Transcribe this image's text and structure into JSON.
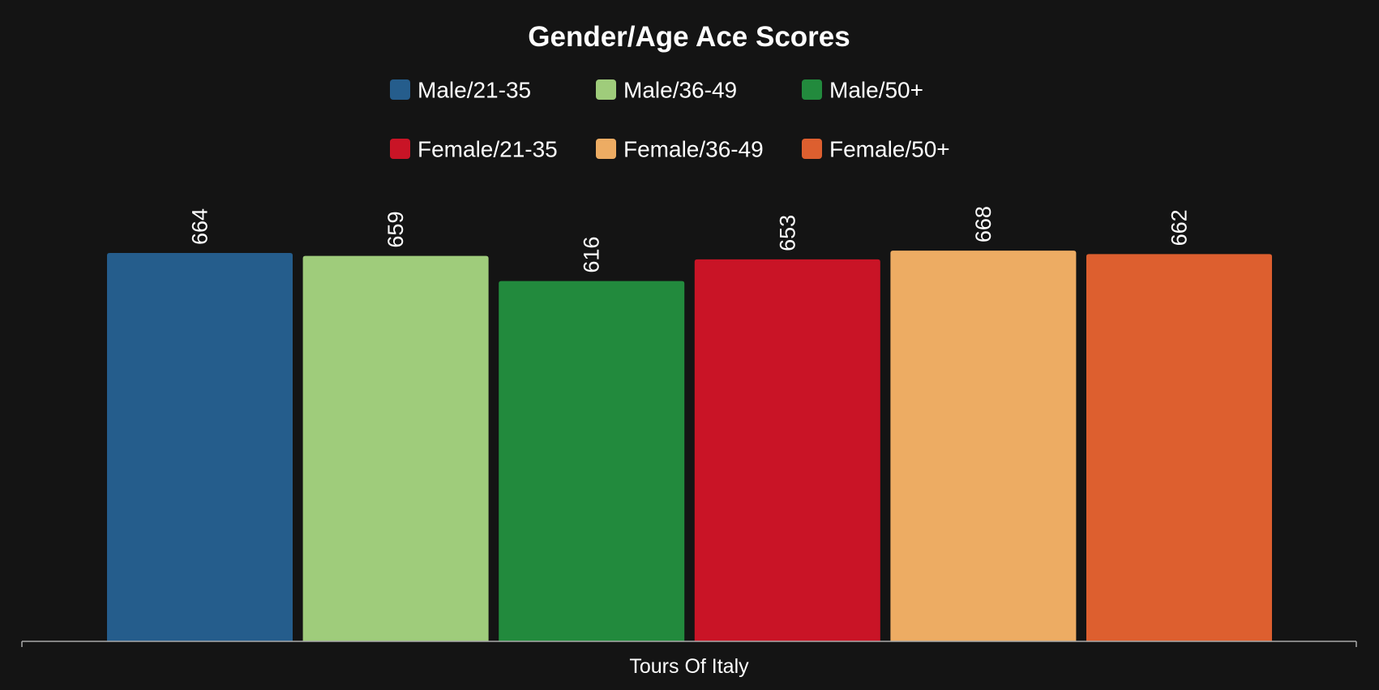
{
  "chart_data": {
    "type": "bar",
    "title": "Gender/Age Ace Scores",
    "xlabel": "",
    "ylabel": "",
    "categories": [
      "Tours Of Italy"
    ],
    "series": [
      {
        "name": "Male/21-35",
        "color": "#255d8c",
        "values": [
          664
        ]
      },
      {
        "name": "Male/36-49",
        "color": "#9fcc7b",
        "values": [
          659
        ]
      },
      {
        "name": "Male/50+",
        "color": "#228a3d",
        "values": [
          616
        ]
      },
      {
        "name": "Female/21-35",
        "color": "#c91426",
        "values": [
          653
        ]
      },
      {
        "name": "Female/36-49",
        "color": "#edac63",
        "values": [
          668
        ]
      },
      {
        "name": "Female/50+",
        "color": "#dd5f2f",
        "values": [
          662
        ]
      }
    ],
    "ylim": [
      0,
      700
    ],
    "grid": false,
    "legend_position": "top-center",
    "data_labels": true
  },
  "colors": {
    "background": "#141414",
    "text": "#ffffff",
    "axis": "#aaaaaa"
  }
}
